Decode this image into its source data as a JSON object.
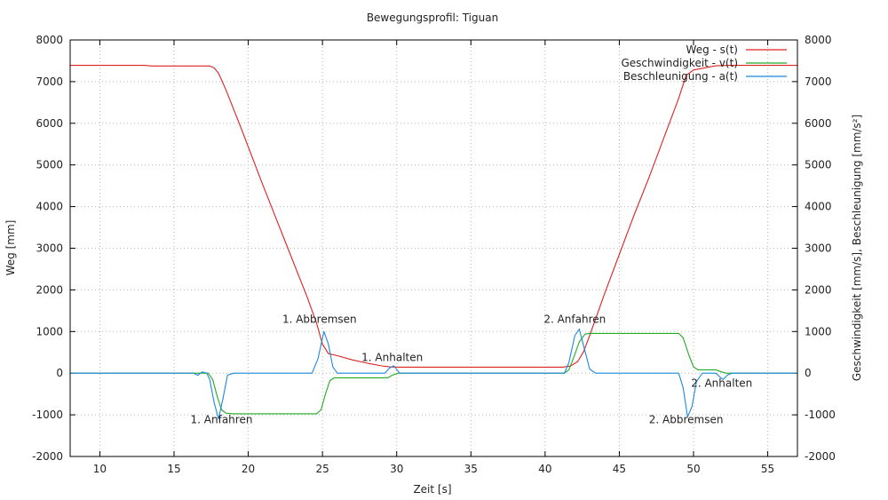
{
  "chart_data": {
    "type": "line",
    "title": "Bewegungsprofil: Tiguan",
    "xlabel": "Zeit [s]",
    "ylabel": "Weg [mm]",
    "y2label": "Geschwindigkeit [mm/s], Beschleunigung [mm/s²]",
    "xlim": [
      8,
      57
    ],
    "ylim": [
      -2000,
      8000
    ],
    "y2lim": [
      -2000,
      8000
    ],
    "xticks": [
      10,
      15,
      20,
      25,
      30,
      35,
      40,
      45,
      50,
      55
    ],
    "yticks": [
      -2000,
      -1000,
      0,
      1000,
      2000,
      3000,
      4000,
      5000,
      6000,
      7000,
      8000
    ],
    "grid": true,
    "legend_position": "top-right",
    "series": [
      {
        "name": "Weg - s(t)",
        "color": "#dd2222",
        "points": [
          [
            8,
            7390
          ],
          [
            13,
            7390
          ],
          [
            13.5,
            7375
          ],
          [
            17.4,
            7375
          ],
          [
            17.7,
            7330
          ],
          [
            18.0,
            7200
          ],
          [
            18.5,
            6800
          ],
          [
            19.5,
            5900
          ],
          [
            21,
            4500
          ],
          [
            22.5,
            3150
          ],
          [
            24,
            1800
          ],
          [
            24.6,
            1200
          ],
          [
            25.0,
            700
          ],
          [
            25.4,
            470
          ],
          [
            26,
            420
          ],
          [
            27,
            320
          ],
          [
            28,
            240
          ],
          [
            29,
            175
          ],
          [
            29.6,
            150
          ],
          [
            30.2,
            145
          ],
          [
            41.2,
            145
          ],
          [
            41.7,
            170
          ],
          [
            42.2,
            280
          ],
          [
            42.6,
            520
          ],
          [
            43,
            900
          ],
          [
            44,
            1900
          ],
          [
            45,
            2850
          ],
          [
            46,
            3800
          ],
          [
            47,
            4700
          ],
          [
            48,
            5650
          ],
          [
            49,
            6600
          ],
          [
            49.5,
            7150
          ],
          [
            50.0,
            7280
          ],
          [
            51.5,
            7380
          ],
          [
            52.5,
            7390
          ],
          [
            57,
            7390
          ]
        ]
      },
      {
        "name": "Geschwindigkeit - v(t)",
        "color": "#22aa22",
        "points": [
          [
            8,
            0
          ],
          [
            17.3,
            0
          ],
          [
            17.6,
            -150
          ],
          [
            17.9,
            -550
          ],
          [
            18.2,
            -880
          ],
          [
            18.5,
            -960
          ],
          [
            19,
            -975
          ],
          [
            24.6,
            -975
          ],
          [
            24.9,
            -880
          ],
          [
            25.2,
            -500
          ],
          [
            25.5,
            -180
          ],
          [
            25.8,
            -110
          ],
          [
            29.4,
            -110
          ],
          [
            29.7,
            -50
          ],
          [
            30.1,
            0
          ],
          [
            41.3,
            0
          ],
          [
            41.6,
            80
          ],
          [
            41.9,
            350
          ],
          [
            42.3,
            750
          ],
          [
            42.7,
            940
          ],
          [
            43,
            955
          ],
          [
            49.0,
            955
          ],
          [
            49.3,
            850
          ],
          [
            49.7,
            420
          ],
          [
            50.0,
            150
          ],
          [
            50.3,
            80
          ],
          [
            51.5,
            80
          ],
          [
            51.8,
            40
          ],
          [
            52.2,
            0
          ],
          [
            57,
            0
          ]
        ]
      },
      {
        "name": "Beschleunigung - a(t)",
        "color": "#1e88dd",
        "points": [
          [
            8,
            0
          ],
          [
            16.3,
            0
          ],
          [
            16.6,
            -50
          ],
          [
            16.9,
            30
          ],
          [
            17.2,
            0
          ],
          [
            17.4,
            -150
          ],
          [
            17.7,
            -700
          ],
          [
            18.0,
            -1100
          ],
          [
            18.3,
            -600
          ],
          [
            18.6,
            -50
          ],
          [
            19,
            0
          ],
          [
            24.3,
            0
          ],
          [
            24.7,
            350
          ],
          [
            25.1,
            1000
          ],
          [
            25.4,
            700
          ],
          [
            25.7,
            150
          ],
          [
            26.0,
            0
          ],
          [
            29.2,
            0
          ],
          [
            29.5,
            120
          ],
          [
            29.8,
            180
          ],
          [
            30.2,
            0
          ],
          [
            41.3,
            0
          ],
          [
            41.6,
            250
          ],
          [
            42.0,
            900
          ],
          [
            42.3,
            1060
          ],
          [
            42.6,
            650
          ],
          [
            43.0,
            100
          ],
          [
            43.4,
            0
          ],
          [
            49.0,
            0
          ],
          [
            49.3,
            -350
          ],
          [
            49.6,
            -1050
          ],
          [
            49.9,
            -800
          ],
          [
            50.2,
            -200
          ],
          [
            50.6,
            0
          ],
          [
            51.5,
            0
          ],
          [
            51.8,
            -100
          ],
          [
            52.0,
            -150
          ],
          [
            52.3,
            -40
          ],
          [
            52.6,
            0
          ],
          [
            57,
            0
          ]
        ]
      }
    ],
    "annotations": [
      {
        "text": "1. Anfahren",
        "x": 18.2,
        "y": -1200
      },
      {
        "text": "1. Abbremsen",
        "x": 24.8,
        "y": 1210
      },
      {
        "text": "1. Anhalten",
        "x": 29.7,
        "y": 290
      },
      {
        "text": "2. Anfahren",
        "x": 42.0,
        "y": 1210
      },
      {
        "text": "2. Abbremsen",
        "x": 49.5,
        "y": -1200
      },
      {
        "text": "2. Anhalten",
        "x": 51.9,
        "y": -330
      }
    ]
  }
}
